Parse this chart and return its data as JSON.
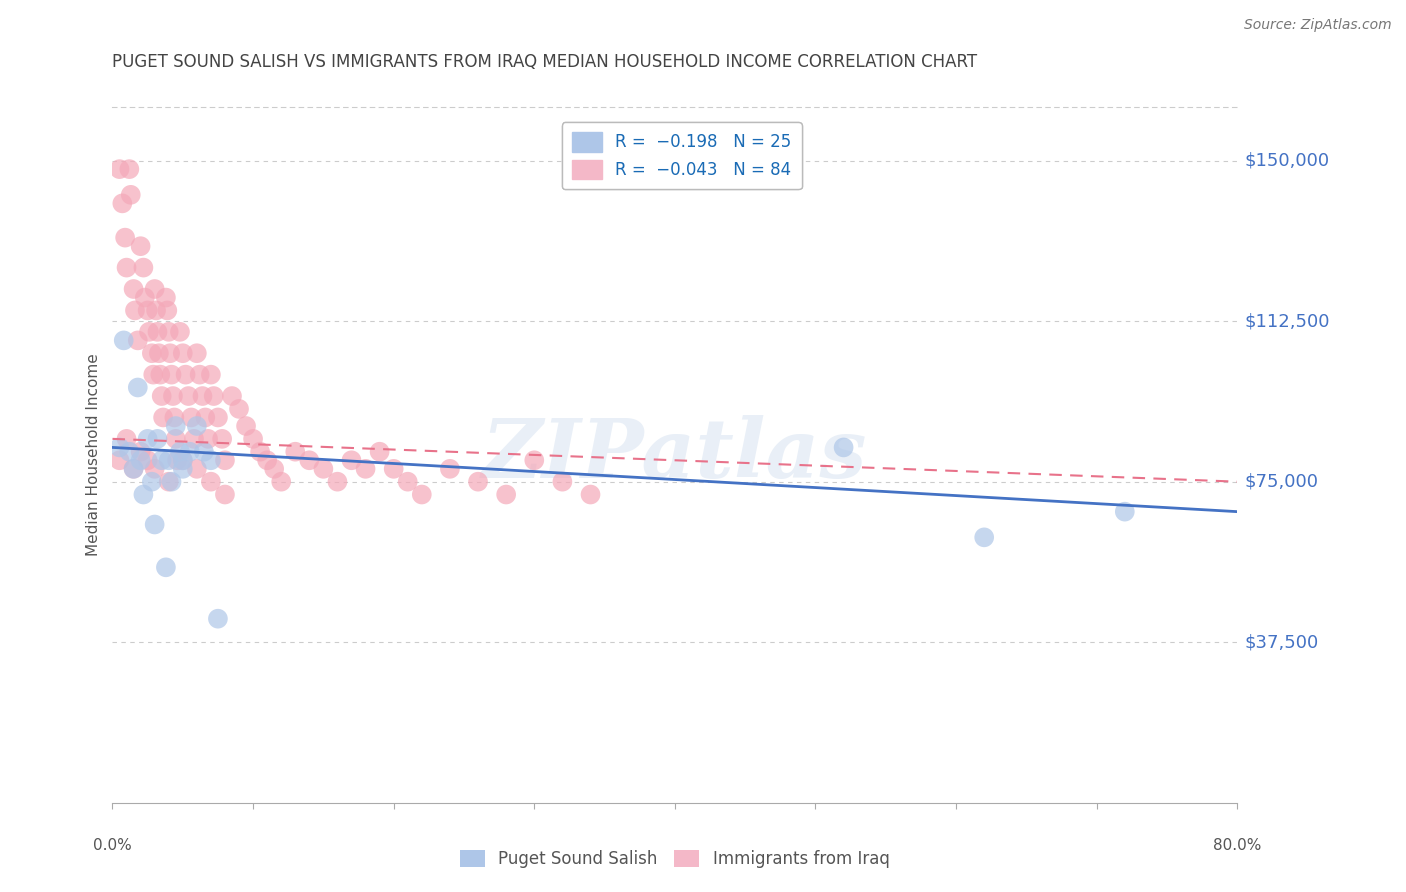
{
  "title": "PUGET SOUND SALISH VS IMMIGRANTS FROM IRAQ MEDIAN HOUSEHOLD INCOME CORRELATION CHART",
  "source": "Source: ZipAtlas.com",
  "ylabel": "Median Household Income",
  "ytick_labels": [
    "$37,500",
    "$75,000",
    "$112,500",
    "$150,000"
  ],
  "ytick_values": [
    37500,
    75000,
    112500,
    150000
  ],
  "ymin": 0,
  "ymax": 162500,
  "xmin": 0.0,
  "xmax": 0.8,
  "watermark": "ZIPatlas",
  "blue_scatter_x": [
    0.005,
    0.008,
    0.012,
    0.015,
    0.018,
    0.02,
    0.022,
    0.025,
    0.028,
    0.03,
    0.032,
    0.035,
    0.038,
    0.04,
    0.042,
    0.045,
    0.048,
    0.05,
    0.05,
    0.055,
    0.06,
    0.065,
    0.07,
    0.075,
    0.52,
    0.62,
    0.72
  ],
  "blue_scatter_y": [
    83000,
    108000,
    82000,
    78000,
    97000,
    80000,
    72000,
    85000,
    75000,
    65000,
    85000,
    80000,
    55000,
    80000,
    75000,
    88000,
    82000,
    78000,
    80000,
    82000,
    88000,
    82000,
    80000,
    43000,
    83000,
    62000,
    68000
  ],
  "pink_scatter_x": [
    0.005,
    0.007,
    0.009,
    0.01,
    0.012,
    0.013,
    0.015,
    0.016,
    0.018,
    0.02,
    0.022,
    0.023,
    0.025,
    0.026,
    0.028,
    0.029,
    0.03,
    0.031,
    0.032,
    0.033,
    0.034,
    0.035,
    0.036,
    0.038,
    0.039,
    0.04,
    0.041,
    0.042,
    0.043,
    0.044,
    0.045,
    0.046,
    0.048,
    0.05,
    0.052,
    0.054,
    0.056,
    0.058,
    0.06,
    0.062,
    0.064,
    0.066,
    0.068,
    0.07,
    0.072,
    0.075,
    0.078,
    0.08,
    0.085,
    0.09,
    0.095,
    0.1,
    0.105,
    0.11,
    0.115,
    0.12,
    0.13,
    0.14,
    0.15,
    0.16,
    0.17,
    0.18,
    0.19,
    0.2,
    0.21,
    0.22,
    0.24,
    0.26,
    0.28,
    0.3,
    0.32,
    0.34,
    0.005,
    0.01,
    0.015,
    0.02,
    0.025,
    0.03,
    0.04,
    0.05,
    0.06,
    0.07,
    0.08
  ],
  "pink_scatter_y": [
    148000,
    140000,
    132000,
    125000,
    148000,
    142000,
    120000,
    115000,
    108000,
    130000,
    125000,
    118000,
    115000,
    110000,
    105000,
    100000,
    120000,
    115000,
    110000,
    105000,
    100000,
    95000,
    90000,
    118000,
    115000,
    110000,
    105000,
    100000,
    95000,
    90000,
    85000,
    80000,
    110000,
    105000,
    100000,
    95000,
    90000,
    85000,
    105000,
    100000,
    95000,
    90000,
    85000,
    100000,
    95000,
    90000,
    85000,
    80000,
    95000,
    92000,
    88000,
    85000,
    82000,
    80000,
    78000,
    75000,
    82000,
    80000,
    78000,
    75000,
    80000,
    78000,
    82000,
    78000,
    75000,
    72000,
    78000,
    75000,
    72000,
    80000,
    75000,
    72000,
    80000,
    85000,
    78000,
    82000,
    80000,
    78000,
    75000,
    80000,
    78000,
    75000,
    72000
  ],
  "blue_line_x": [
    0.0,
    0.8
  ],
  "blue_line_y": [
    83000,
    68000
  ],
  "pink_line_x": [
    0.0,
    0.8
  ],
  "pink_line_y": [
    85000,
    75000
  ],
  "blue_line_color": "#4472c4",
  "pink_line_color": "#e8728a",
  "blue_dot_color": "#aec6e8",
  "pink_dot_color": "#f4a8b8",
  "grid_color": "#cccccc",
  "background_color": "#ffffff",
  "title_color": "#444444",
  "ytick_color": "#4472c4"
}
